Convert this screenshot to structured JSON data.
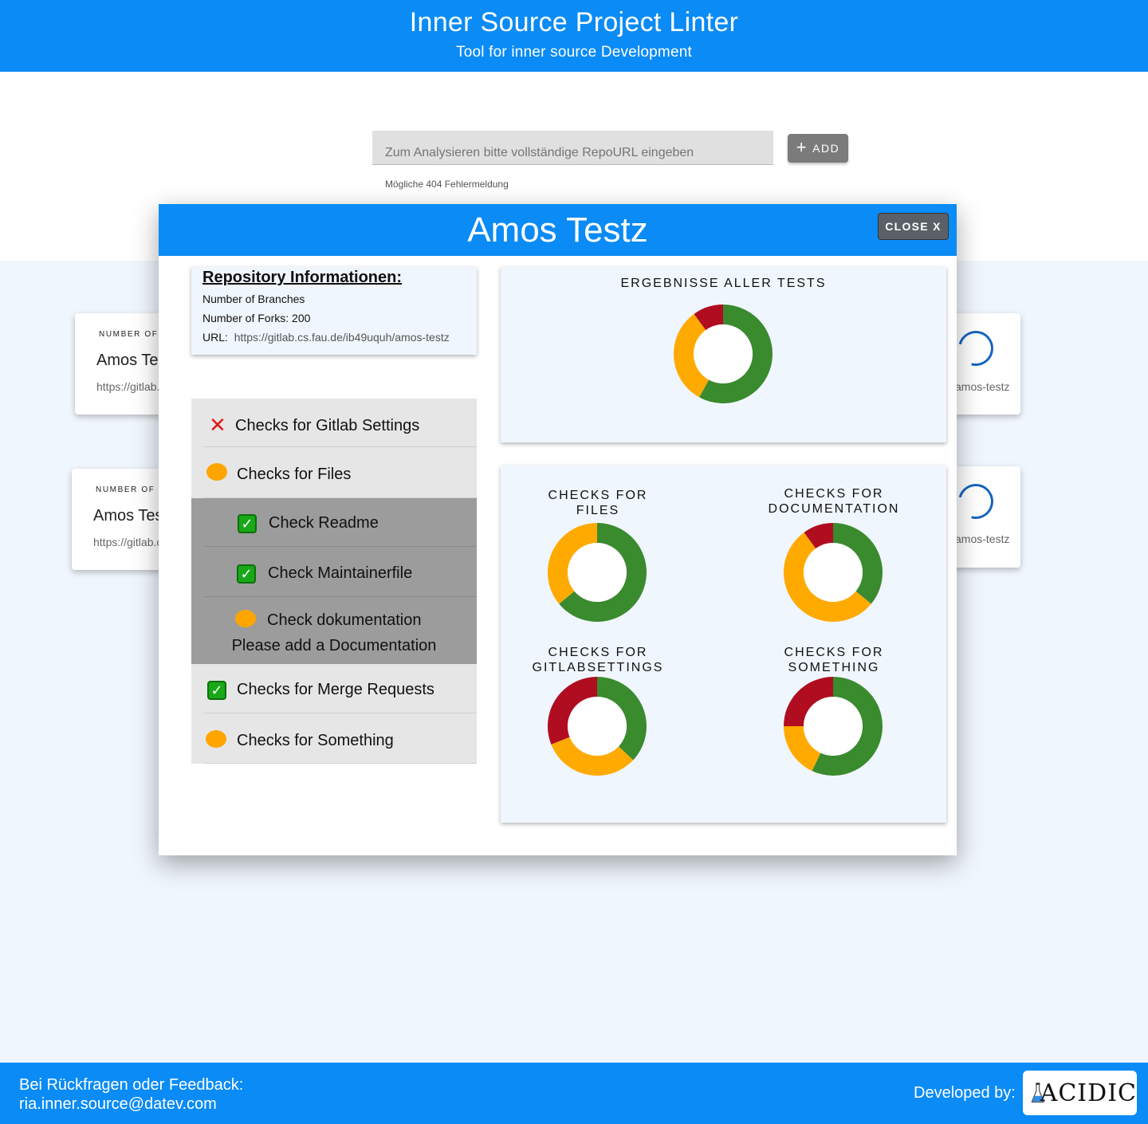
{
  "header": {
    "title": "Inner Source Project Linter",
    "subtitle": "Tool for inner source Development"
  },
  "search": {
    "placeholder": "Zum Analysieren bitte vollständige RepoURL eingeben",
    "add_label": "ADD",
    "helper": "Mögliche 404 Fehlermeldung"
  },
  "background_cards": [
    {
      "small": "NUMBER OF B",
      "name": "Amos Testz",
      "url": "https://gitlab.cs.fau.de/ib49uquh/amos-testz",
      "url_tail": "amos-testz"
    },
    {
      "small": "NUMBER OF F",
      "name": "Amos Testz",
      "url": "https://gitlab.cs.fau.de/ib49uquh/amos-testz",
      "url_tail": "amos-testz"
    }
  ],
  "modal": {
    "title": "Amos Testz",
    "close_label": "CLOSE X",
    "info": {
      "title": "Repository Informationen:",
      "branches": "Number of Branches",
      "forks": "Number of Forks: 200",
      "url_label": "URL:",
      "url": "https://gitlab.cs.fau.de/ib49uquh/amos-testz"
    },
    "checks": [
      {
        "label": "Checks for Gitlab Settings",
        "status": "failed",
        "icon": "cross-icon"
      },
      {
        "label": "Checks for Files",
        "status": "warning",
        "icon": "orange-dot-icon"
      },
      {
        "label": "Check Readme",
        "status": "passed",
        "icon": "check-mark-icon"
      },
      {
        "label": "Check Maintainerfile",
        "status": "passed",
        "icon": "check-mark-icon"
      },
      {
        "label": "Check dokumentation",
        "note": "Please add a Documentation",
        "status": "warning",
        "icon": "orange-dot-icon"
      },
      {
        "label": "Checks for Merge Requests",
        "status": "passed",
        "icon": "check-mark-icon"
      },
      {
        "label": "Checks for Something",
        "status": "warning",
        "icon": "orange-dot-icon"
      }
    ],
    "colors": {
      "passed": "#3a8a2e",
      "warning": "#ffaa00",
      "failed": "#b00d20"
    }
  },
  "chart_data": [
    {
      "type": "pie",
      "title": "ERGEBNISSE ALLER TESTS",
      "categories": [
        "passed",
        "warning",
        "failed"
      ],
      "values": [
        58,
        32,
        10
      ]
    },
    {
      "type": "pie",
      "title": "CHECKS FOR FILES",
      "categories": [
        "passed",
        "warning",
        "failed"
      ],
      "values": [
        64,
        36,
        0
      ]
    },
    {
      "type": "pie",
      "title": "CHECKS FOR DOCUMENTATION",
      "categories": [
        "passed",
        "warning",
        "failed"
      ],
      "values": [
        36,
        54,
        10
      ]
    },
    {
      "type": "pie",
      "title": "CHECKS FOR GITLABSETTINGS",
      "categories": [
        "passed",
        "warning",
        "failed"
      ],
      "values": [
        37,
        32,
        31
      ]
    },
    {
      "type": "pie",
      "title": "CHECKS FOR SOMETHING",
      "categories": [
        "passed",
        "warning",
        "failed"
      ],
      "values": [
        57,
        18,
        25
      ]
    }
  ],
  "footer": {
    "feedback_line1": "Bei Rückfragen oder Feedback:",
    "feedback_line2": "ria.inner.source@datev.com",
    "developed_by": "Developed by:",
    "logo_text": "ACIDIC"
  }
}
